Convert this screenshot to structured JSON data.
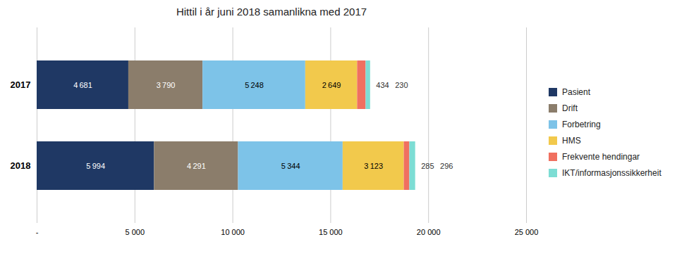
{
  "chart_data": {
    "type": "bar",
    "orientation": "horizontal",
    "stacked": true,
    "title": "Hittil i år juni 2018 samanlikna med 2017",
    "categories": [
      "2018",
      "2017"
    ],
    "series": [
      {
        "name": "Pasient",
        "color": "#1F3864",
        "values": [
          5994,
          4681
        ],
        "value_labels": [
          "5 994",
          "4 681"
        ]
      },
      {
        "name": "Drift",
        "color": "#8B7D6B",
        "values": [
          4291,
          3790
        ],
        "value_labels": [
          "4 291",
          "3 790"
        ]
      },
      {
        "name": "Forbetring",
        "color": "#7DC3E8",
        "values": [
          5344,
          5248
        ],
        "value_labels": [
          "5 344",
          "5 248"
        ]
      },
      {
        "name": "HMS",
        "color": "#F2C94C",
        "values": [
          3123,
          2649
        ],
        "value_labels": [
          "3 123",
          "2 649"
        ]
      },
      {
        "name": "Frekvente hendingar",
        "color": "#F07060",
        "values": [
          285,
          434
        ]
      },
      {
        "name": "IKT/informasjonssikkerheit",
        "color": "#7DDDD4",
        "values": [
          296,
          230
        ]
      }
    ],
    "xlim": [
      0,
      25000
    ],
    "xticks": [
      {
        "value": 0,
        "label": "-"
      },
      {
        "value": 5000,
        "label": "5 000"
      },
      {
        "value": 10000,
        "label": "10 000"
      },
      {
        "value": 15000,
        "label": "15 000"
      },
      {
        "value": 20000,
        "label": "20 000"
      },
      {
        "value": 25000,
        "label": "25 000"
      }
    ],
    "grid": true,
    "legend": "right",
    "data_labels": true
  }
}
